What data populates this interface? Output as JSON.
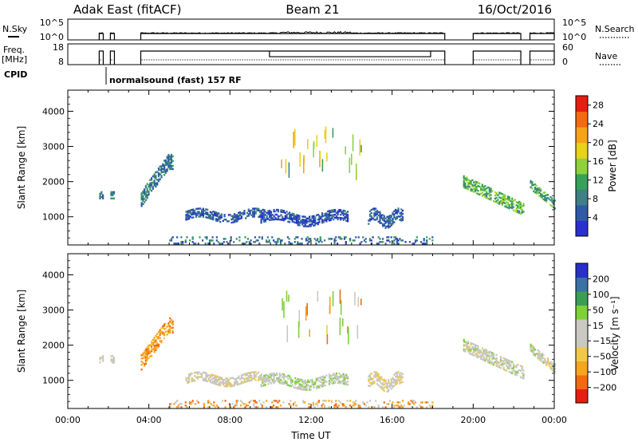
{
  "header": {
    "station": "Adak East (fitACF)",
    "beam": "Beam 21",
    "date": "16/Oct/2016"
  },
  "nsky_panel": {
    "left_label": "N.Sky",
    "right_label": "N.Search",
    "left_ticks": [
      "10^5",
      "10^0"
    ],
    "right_ticks": [
      "10^5",
      "10^0"
    ]
  },
  "freq_panel": {
    "left_label_line1": "Freq.",
    "left_label_line2": "[MHz]",
    "right_label": "Nave",
    "left_ticks": [
      "18",
      "8"
    ],
    "right_ticks": [
      "60",
      "0"
    ]
  },
  "cpid": {
    "label": "CPID",
    "program": "normalsound (fast) 157 RF"
  },
  "colors": {
    "power": [
      "#2a2fd0",
      "#2f5aa8",
      "#3f7f86",
      "#35a25a",
      "#8fd13d",
      "#e8d21a",
      "#f7a21a",
      "#f26a12",
      "#e81d12"
    ],
    "velocity": [
      "#e81d12",
      "#f26a12",
      "#f5a51e",
      "#f2c84a",
      "#c9c9c1",
      "#c9c9c1",
      "#7ed13a",
      "#3c9e55",
      "#3a72a5",
      "#2a2fc8"
    ],
    "ground": "#c8c8c0"
  },
  "chart_data": [
    {
      "type": "heatmap",
      "name": "power",
      "ylabel": "Slant Range [km]",
      "yticks": [
        "1000",
        "2000",
        "3000",
        "4000"
      ],
      "ylim": [
        200,
        4600
      ],
      "xlim": [
        0,
        24
      ],
      "xticks": [
        "00:00",
        "04:00",
        "08:00",
        "12:00",
        "16:00",
        "20:00",
        "00:00"
      ],
      "colorbar": {
        "label": "Power [dB]",
        "ticks": [
          "4",
          "8",
          "12",
          "16",
          "20",
          "24",
          "28"
        ],
        "range": [
          0,
          30
        ]
      },
      "echo_regions": [
        {
          "t": [
            1.55,
            1.75
          ],
          "r": [
            1420,
            1800
          ],
          "v": 6
        },
        {
          "t": [
            2.1,
            2.3
          ],
          "r": [
            1420,
            1800
          ],
          "v": 8
        },
        {
          "t": [
            3.6,
            5.2
          ],
          "r": [
            1500,
            2900
          ],
          "v": 7
        },
        {
          "t": [
            5.8,
            9.7
          ],
          "r": [
            800,
            1250
          ],
          "v": 5
        },
        {
          "t": [
            9.5,
            13.8
          ],
          "r": [
            700,
            1200
          ],
          "v": 4
        },
        {
          "t": [
            14.8,
            16.5
          ],
          "r": [
            650,
            1250
          ],
          "v": 5
        },
        {
          "t": [
            19.5,
            22.5
          ],
          "r": [
            1000,
            2000
          ],
          "v": 12
        },
        {
          "t": [
            22.8,
            24.0
          ],
          "r": [
            1200,
            1900
          ],
          "v": 11
        },
        {
          "t": [
            5.0,
            18.0
          ],
          "r": [
            220,
            420
          ],
          "v": 8
        }
      ]
    },
    {
      "type": "heatmap",
      "name": "velocity",
      "ylabel": "Slant Range [km]",
      "yticks": [
        "1000",
        "2000",
        "3000",
        "4000"
      ],
      "ylim": [
        200,
        4600
      ],
      "xlim": [
        0,
        24
      ],
      "xticks": [
        "00:00",
        "04:00",
        "08:00",
        "12:00",
        "16:00",
        "20:00",
        "00:00"
      ],
      "xlabel": "Time UT",
      "colorbar": {
        "label": "Velocity [m s⁻¹]",
        "ticks": [
          "200",
          "100",
          "50",
          "15",
          "−15",
          "−50",
          "−100",
          "−200"
        ]
      },
      "echo_regions": [
        {
          "t": [
            1.55,
            1.75
          ],
          "r": [
            1400,
            1800
          ],
          "v": -10
        },
        {
          "t": [
            2.1,
            2.3
          ],
          "r": [
            1400,
            1800
          ],
          "v": -10
        },
        {
          "t": [
            3.6,
            5.2
          ],
          "r": [
            1500,
            2900
          ],
          "v": -40
        },
        {
          "t": [
            5.8,
            9.7
          ],
          "r": [
            800,
            1250
          ],
          "v": -5
        },
        {
          "t": [
            9.5,
            13.8
          ],
          "r": [
            700,
            1200
          ],
          "v": 5
        },
        {
          "t": [
            14.8,
            16.5
          ],
          "r": [
            650,
            1250
          ],
          "v": -10
        },
        {
          "t": [
            19.5,
            22.5
          ],
          "r": [
            1000,
            2000
          ],
          "v": 0
        },
        {
          "t": [
            22.8,
            24.0
          ],
          "r": [
            1200,
            1900
          ],
          "v": 0
        },
        {
          "t": [
            5.0,
            18.0
          ],
          "r": [
            220,
            420
          ],
          "v": -45
        }
      ]
    }
  ],
  "operating_periods": [
    [
      1.55,
      1.75
    ],
    [
      2.1,
      2.3
    ],
    [
      3.6,
      18.6
    ],
    [
      20.0,
      22.35
    ],
    [
      22.8,
      24.0
    ]
  ]
}
